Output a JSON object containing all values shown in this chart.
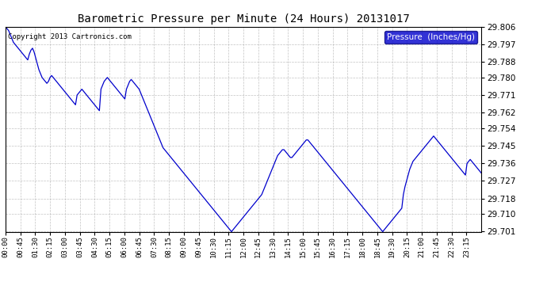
{
  "title": "Barometric Pressure per Minute (24 Hours) 20131017",
  "copyright": "Copyright 2013 Cartronics.com",
  "legend_label": "Pressure  (Inches/Hg)",
  "background_color": "#ffffff",
  "plot_bg_color": "#ffffff",
  "line_color": "#0000cc",
  "legend_bg": "#0000cc",
  "legend_text_color": "#ffffff",
  "grid_color": "#aaaaaa",
  "ylim": [
    29.701,
    29.806
  ],
  "yticks": [
    29.701,
    29.71,
    29.718,
    29.727,
    29.736,
    29.745,
    29.754,
    29.762,
    29.771,
    29.78,
    29.788,
    29.797,
    29.806
  ],
  "xtick_labels": [
    "00:00",
    "00:45",
    "01:30",
    "02:15",
    "03:00",
    "03:45",
    "04:30",
    "05:15",
    "06:00",
    "06:45",
    "07:30",
    "08:15",
    "09:00",
    "09:45",
    "10:30",
    "11:15",
    "12:00",
    "12:45",
    "13:30",
    "14:15",
    "15:00",
    "15:45",
    "16:30",
    "17:15",
    "18:00",
    "18:45",
    "19:30",
    "20:15",
    "21:00",
    "21:45",
    "22:30",
    "23:15"
  ],
  "pressure_data": [
    29.806,
    29.805,
    29.804,
    29.802,
    29.8,
    29.798,
    29.797,
    29.796,
    29.795,
    29.794,
    29.793,
    29.792,
    29.791,
    29.79,
    29.789,
    29.792,
    29.794,
    29.795,
    29.793,
    29.79,
    29.787,
    29.784,
    29.782,
    29.78,
    29.779,
    29.778,
    29.777,
    29.778,
    29.78,
    29.781,
    29.78,
    29.779,
    29.778,
    29.777,
    29.776,
    29.775,
    29.774,
    29.773,
    29.772,
    29.771,
    29.77,
    29.769,
    29.768,
    29.767,
    29.766,
    29.771,
    29.772,
    29.773,
    29.774,
    29.773,
    29.772,
    29.771,
    29.77,
    29.769,
    29.768,
    29.767,
    29.766,
    29.765,
    29.764,
    29.763,
    29.774,
    29.776,
    29.778,
    29.779,
    29.78,
    29.779,
    29.778,
    29.777,
    29.776,
    29.775,
    29.774,
    29.773,
    29.772,
    29.771,
    29.77,
    29.769,
    29.774,
    29.776,
    29.778,
    29.779,
    29.778,
    29.777,
    29.776,
    29.775,
    29.774,
    29.772,
    29.77,
    29.768,
    29.766,
    29.764,
    29.762,
    29.76,
    29.758,
    29.756,
    29.754,
    29.752,
    29.75,
    29.748,
    29.746,
    29.744,
    29.743,
    29.742,
    29.741,
    29.74,
    29.739,
    29.738,
    29.737,
    29.736,
    29.735,
    29.734,
    29.733,
    29.732,
    29.731,
    29.73,
    29.729,
    29.728,
    29.727,
    29.726,
    29.725,
    29.724,
    29.723,
    29.722,
    29.721,
    29.72,
    29.719,
    29.718,
    29.717,
    29.716,
    29.715,
    29.714,
    29.713,
    29.712,
    29.711,
    29.71,
    29.709,
    29.708,
    29.707,
    29.706,
    29.705,
    29.704,
    29.703,
    29.702,
    29.701,
    29.702,
    29.703,
    29.704,
    29.705,
    29.706,
    29.707,
    29.708,
    29.709,
    29.71,
    29.711,
    29.712,
    29.713,
    29.714,
    29.715,
    29.716,
    29.717,
    29.718,
    29.719,
    29.72,
    29.722,
    29.724,
    29.726,
    29.728,
    29.73,
    29.732,
    29.734,
    29.736,
    29.738,
    29.74,
    29.741,
    29.742,
    29.743,
    29.743,
    29.742,
    29.741,
    29.74,
    29.739,
    29.739,
    29.74,
    29.741,
    29.742,
    29.743,
    29.744,
    29.745,
    29.746,
    29.747,
    29.748,
    29.748,
    29.747,
    29.746,
    29.745,
    29.744,
    29.743,
    29.742,
    29.741,
    29.74,
    29.739,
    29.738,
    29.737,
    29.736,
    29.735,
    29.734,
    29.733,
    29.732,
    29.731,
    29.73,
    29.729,
    29.728,
    29.727,
    29.726,
    29.725,
    29.724,
    29.723,
    29.722,
    29.721,
    29.72,
    29.719,
    29.718,
    29.717,
    29.716,
    29.715,
    29.714,
    29.713,
    29.712,
    29.711,
    29.71,
    29.709,
    29.708,
    29.707,
    29.706,
    29.705,
    29.704,
    29.703,
    29.702,
    29.701,
    29.702,
    29.703,
    29.704,
    29.705,
    29.706,
    29.707,
    29.708,
    29.709,
    29.71,
    29.711,
    29.712,
    29.713,
    29.72,
    29.724,
    29.727,
    29.73,
    29.733,
    29.735,
    29.737,
    29.738,
    29.739,
    29.74,
    29.741,
    29.742,
    29.743,
    29.744,
    29.745,
    29.746,
    29.747,
    29.748,
    29.749,
    29.75,
    29.749,
    29.748,
    29.747,
    29.746,
    29.745,
    29.744,
    29.743,
    29.742,
    29.741,
    29.74,
    29.739,
    29.738,
    29.737,
    29.736,
    29.735,
    29.734,
    29.733,
    29.732,
    29.731,
    29.73,
    29.736,
    29.737,
    29.738,
    29.737,
    29.736,
    29.735,
    29.734,
    29.733,
    29.732,
    29.731
  ]
}
